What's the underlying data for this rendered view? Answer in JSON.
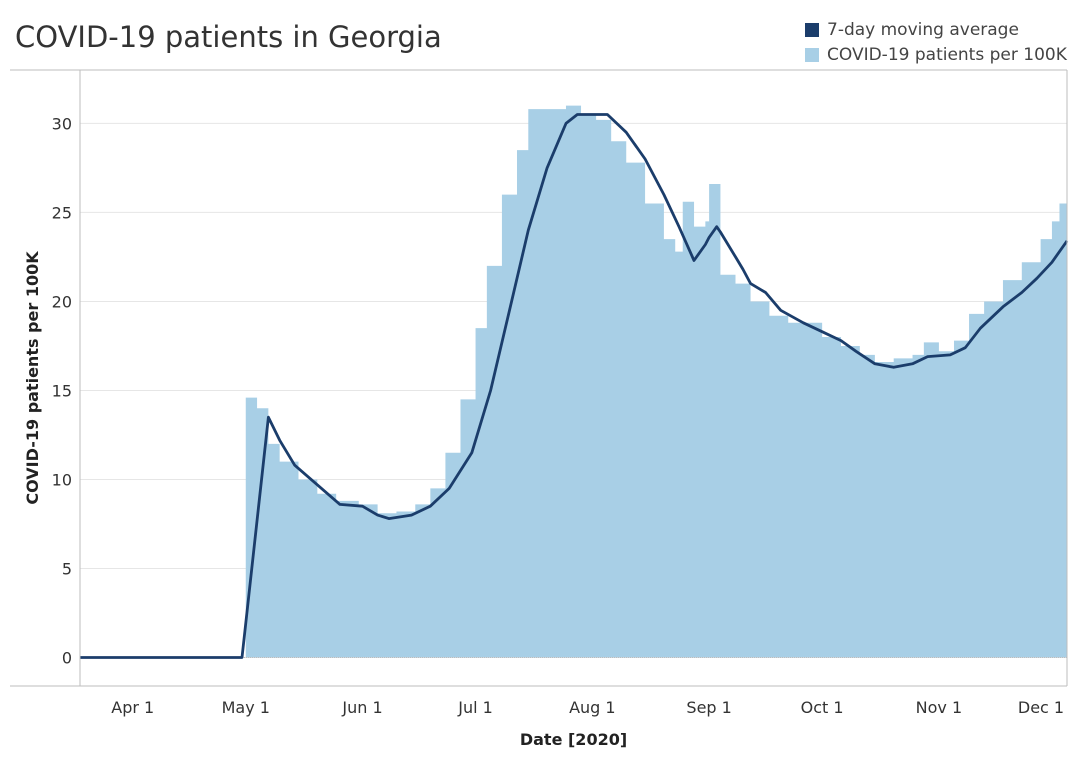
{
  "chart_data": {
    "type": "area",
    "title": "COVID-19 patients in Georgia",
    "xlabel": "Date [2020]",
    "ylabel": "COVID-19 patients per 100K",
    "xlim": [
      "2020-03-18",
      "2020-12-05"
    ],
    "ylim": [
      -1.6,
      33
    ],
    "grid": true,
    "legend_position": "top-right",
    "y_ticks": [
      0,
      5,
      10,
      15,
      20,
      25,
      30
    ],
    "x_ticks": [
      {
        "date": "2020-04-01",
        "label": "Apr 1"
      },
      {
        "date": "2020-05-01",
        "label": "May 1"
      },
      {
        "date": "2020-06-01",
        "label": "Jun 1"
      },
      {
        "date": "2020-07-01",
        "label": "Jul 1"
      },
      {
        "date": "2020-08-01",
        "label": "Aug 1"
      },
      {
        "date": "2020-09-01",
        "label": "Sep 1"
      },
      {
        "date": "2020-10-01",
        "label": "Oct 1"
      },
      {
        "date": "2020-11-01",
        "label": "Nov 1"
      },
      {
        "date": "2020-12-01",
        "label": "Dec 1"
      }
    ],
    "series": [
      {
        "name": "COVID-19 patients per 100K",
        "type": "area",
        "color": "#a8cfe6",
        "points": [
          [
            "2020-03-18",
            0
          ],
          [
            "2020-04-30",
            0
          ],
          [
            "2020-05-01",
            14.6
          ],
          [
            "2020-05-04",
            14.0
          ],
          [
            "2020-05-07",
            12.0
          ],
          [
            "2020-05-10",
            11.0
          ],
          [
            "2020-05-15",
            10.0
          ],
          [
            "2020-05-20",
            9.2
          ],
          [
            "2020-05-25",
            8.8
          ],
          [
            "2020-05-31",
            8.6
          ],
          [
            "2020-06-05",
            8.1
          ],
          [
            "2020-06-10",
            8.2
          ],
          [
            "2020-06-15",
            8.6
          ],
          [
            "2020-06-19",
            9.5
          ],
          [
            "2020-06-23",
            11.5
          ],
          [
            "2020-06-27",
            14.5
          ],
          [
            "2020-07-01",
            18.5
          ],
          [
            "2020-07-04",
            22.0
          ],
          [
            "2020-07-08",
            26.0
          ],
          [
            "2020-07-12",
            28.5
          ],
          [
            "2020-07-15",
            30.8
          ],
          [
            "2020-07-21",
            30.8
          ],
          [
            "2020-07-25",
            31.0
          ],
          [
            "2020-07-29",
            30.5
          ],
          [
            "2020-08-02",
            30.2
          ],
          [
            "2020-08-06",
            29.0
          ],
          [
            "2020-08-10",
            27.8
          ],
          [
            "2020-08-15",
            25.5
          ],
          [
            "2020-08-20",
            23.5
          ],
          [
            "2020-08-23",
            22.8
          ],
          [
            "2020-08-25",
            25.6
          ],
          [
            "2020-08-28",
            24.2
          ],
          [
            "2020-08-31",
            24.5
          ],
          [
            "2020-09-01",
            26.6
          ],
          [
            "2020-09-04",
            21.5
          ],
          [
            "2020-09-08",
            21.0
          ],
          [
            "2020-09-12",
            20.0
          ],
          [
            "2020-09-17",
            19.2
          ],
          [
            "2020-09-22",
            18.8
          ],
          [
            "2020-09-27",
            18.8
          ],
          [
            "2020-10-01",
            18.0
          ],
          [
            "2020-10-06",
            17.5
          ],
          [
            "2020-10-11",
            17.0
          ],
          [
            "2020-10-15",
            16.6
          ],
          [
            "2020-10-20",
            16.8
          ],
          [
            "2020-10-25",
            17.0
          ],
          [
            "2020-10-28",
            17.7
          ],
          [
            "2020-11-01",
            17.2
          ],
          [
            "2020-11-05",
            17.8
          ],
          [
            "2020-11-09",
            19.3
          ],
          [
            "2020-11-13",
            20.0
          ],
          [
            "2020-11-18",
            21.2
          ],
          [
            "2020-11-23",
            22.2
          ],
          [
            "2020-11-28",
            23.5
          ],
          [
            "2020-12-01",
            24.5
          ],
          [
            "2020-12-03",
            25.5
          ],
          [
            "2020-12-05",
            25.6
          ]
        ]
      },
      {
        "name": "7-day moving average",
        "type": "line",
        "color": "#1b3d6b",
        "points": [
          [
            "2020-03-18",
            0
          ],
          [
            "2020-04-30",
            0
          ],
          [
            "2020-05-07",
            13.5
          ],
          [
            "2020-05-10",
            12.2
          ],
          [
            "2020-05-14",
            10.8
          ],
          [
            "2020-05-20",
            9.7
          ],
          [
            "2020-05-26",
            8.6
          ],
          [
            "2020-06-01",
            8.5
          ],
          [
            "2020-06-05",
            8.0
          ],
          [
            "2020-06-08",
            7.8
          ],
          [
            "2020-06-14",
            8.0
          ],
          [
            "2020-06-19",
            8.5
          ],
          [
            "2020-06-24",
            9.5
          ],
          [
            "2020-06-30",
            11.5
          ],
          [
            "2020-07-05",
            15.0
          ],
          [
            "2020-07-10",
            19.5
          ],
          [
            "2020-07-15",
            24.0
          ],
          [
            "2020-07-20",
            27.5
          ],
          [
            "2020-07-25",
            30.0
          ],
          [
            "2020-07-28",
            30.5
          ],
          [
            "2020-08-05",
            30.5
          ],
          [
            "2020-08-10",
            29.5
          ],
          [
            "2020-08-15",
            28.0
          ],
          [
            "2020-08-20",
            26.0
          ],
          [
            "2020-08-24",
            24.2
          ],
          [
            "2020-08-28",
            22.3
          ],
          [
            "2020-08-31",
            23.2
          ],
          [
            "2020-09-01",
            23.6
          ],
          [
            "2020-09-03",
            24.2
          ],
          [
            "2020-09-04",
            23.9
          ],
          [
            "2020-09-08",
            22.5
          ],
          [
            "2020-09-10",
            21.8
          ],
          [
            "2020-09-12",
            21.0
          ],
          [
            "2020-09-16",
            20.5
          ],
          [
            "2020-09-20",
            19.5
          ],
          [
            "2020-09-26",
            18.8
          ],
          [
            "2020-10-01",
            18.3
          ],
          [
            "2020-10-06",
            17.8
          ],
          [
            "2020-10-10",
            17.2
          ],
          [
            "2020-10-15",
            16.5
          ],
          [
            "2020-10-20",
            16.3
          ],
          [
            "2020-10-25",
            16.5
          ],
          [
            "2020-10-29",
            16.9
          ],
          [
            "2020-11-04",
            17.0
          ],
          [
            "2020-11-08",
            17.4
          ],
          [
            "2020-11-12",
            18.5
          ],
          [
            "2020-11-18",
            19.7
          ],
          [
            "2020-11-23",
            20.5
          ],
          [
            "2020-11-27",
            21.3
          ],
          [
            "2020-12-01",
            22.2
          ],
          [
            "2020-12-05",
            23.4
          ]
        ]
      }
    ]
  }
}
